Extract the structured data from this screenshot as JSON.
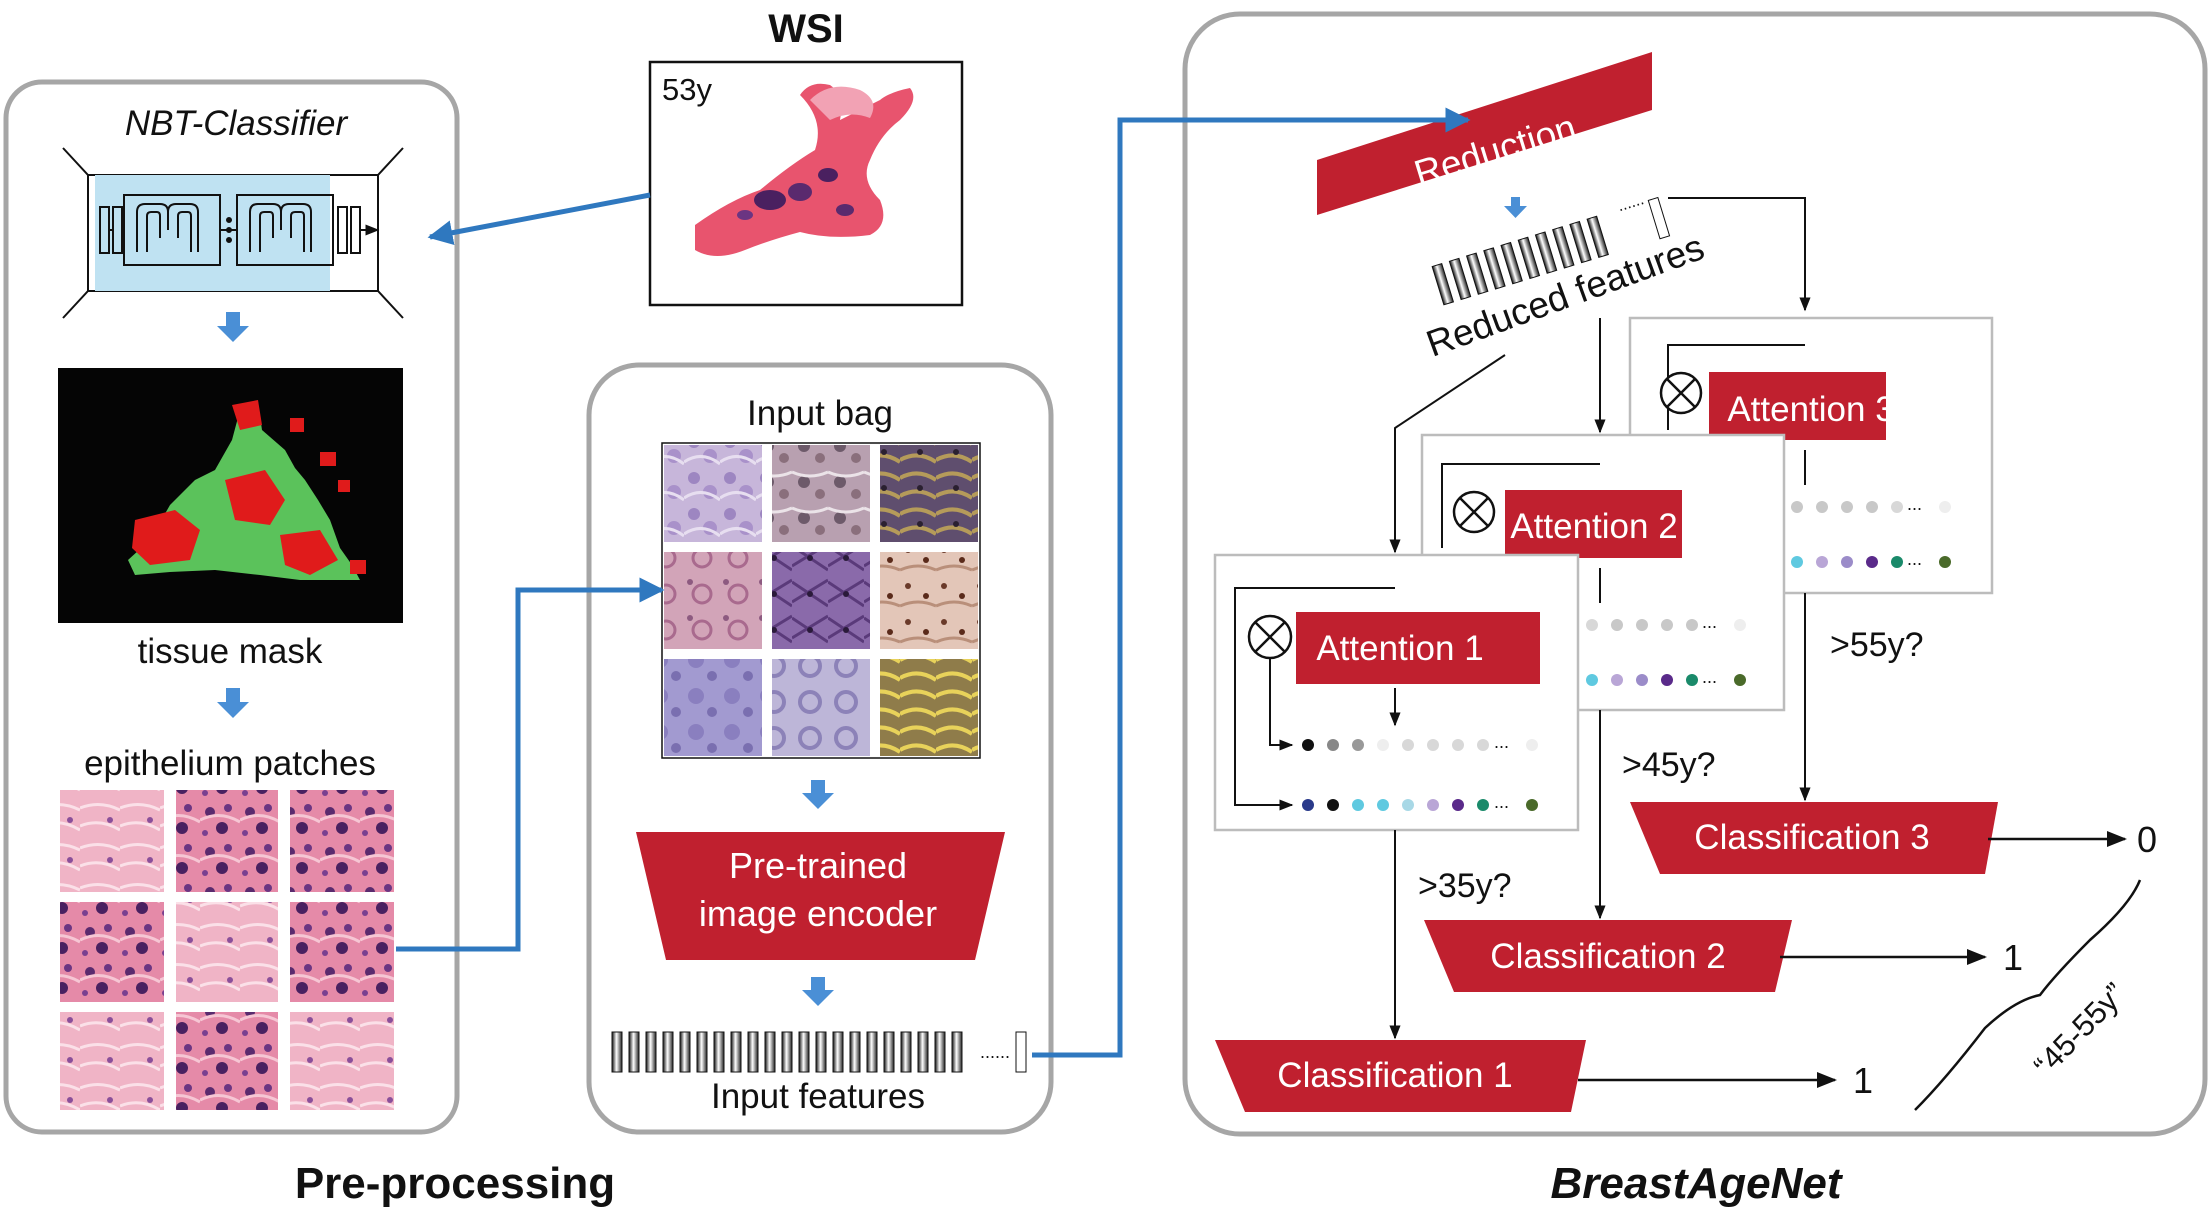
{
  "wsi": {
    "title": "WSI",
    "age_label": "53y"
  },
  "preprocessing": {
    "caption": "Pre-processing",
    "classifier_title": "NBT-Classifier",
    "mask_label": "tissue mask",
    "patches_label": "epithelium patches"
  },
  "middle": {
    "bag_label": "Input bag",
    "encoder_line1": "Pre-trained",
    "encoder_line2": "image encoder",
    "features_label": "Input features",
    "ellipsis": "......"
  },
  "breastagenet": {
    "caption": "BreastAgeNet",
    "reduction_label": "Reduction",
    "reduced_label": "Reduced features",
    "attention_labels": [
      "Attention 1",
      "Attention 2",
      "Attention 3"
    ],
    "classification_labels": [
      "Classification 1",
      "Classification 2",
      "Classification 3"
    ],
    "thresholds": [
      ">35y?",
      ">45y?",
      ">55y?"
    ],
    "outputs": [
      "1",
      "1",
      "0"
    ],
    "range_label": "“45-55y”",
    "dot_ellipsis": "..."
  },
  "colors": {
    "panel_border": "#a6a6a6",
    "red_box": "#c0202f",
    "arrow_blue": "#2f78bf",
    "down_arrow": "#4a8fd6",
    "classifier_fill": "#bfe2f2",
    "mask_green": "#5bc25b",
    "mask_red": "#e01b1b"
  }
}
